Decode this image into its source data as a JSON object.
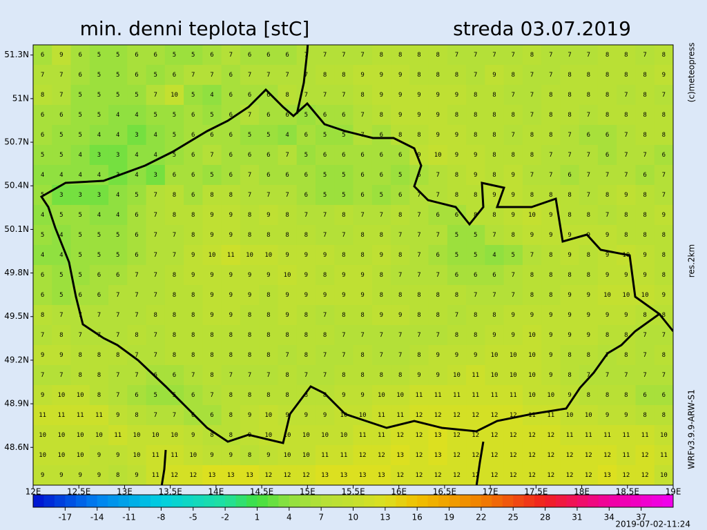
{
  "title": "min. denni teplota [stC]",
  "date": "streda 03.07.2019",
  "copyright": "(c)meteopress",
  "resolution": "res.2km",
  "model": "WRFv3.9.9-ARW-S1",
  "timestamp": "2019-07-02-11:24",
  "map": {
    "xlim": [
      12,
      19
    ],
    "ylim": [
      48.34,
      51.37
    ],
    "xticks": [
      {
        "value": 12,
        "label": "12E"
      },
      {
        "value": 12.5,
        "label": "12.5E"
      },
      {
        "value": 13,
        "label": "13E"
      },
      {
        "value": 13.5,
        "label": "13.5E"
      },
      {
        "value": 14,
        "label": "14E"
      },
      {
        "value": 14.5,
        "label": "14.5E"
      },
      {
        "value": 15,
        "label": "15E"
      },
      {
        "value": 15.5,
        "label": "15.5E"
      },
      {
        "value": 16,
        "label": "16E"
      },
      {
        "value": 16.5,
        "label": "16.5E"
      },
      {
        "value": 17,
        "label": "17E"
      },
      {
        "value": 17.5,
        "label": "17.5E"
      },
      {
        "value": 18,
        "label": "18E"
      },
      {
        "value": 18.5,
        "label": "18.5E"
      },
      {
        "value": 19,
        "label": "19E"
      }
    ],
    "yticks": [
      {
        "value": 51.3,
        "label": "51.3N"
      },
      {
        "value": 51,
        "label": "51N"
      },
      {
        "value": 50.7,
        "label": "50.7N"
      },
      {
        "value": 50.4,
        "label": "50.4N"
      },
      {
        "value": 50.1,
        "label": "50.1N"
      },
      {
        "value": 49.8,
        "label": "49.8N"
      },
      {
        "value": 49.5,
        "label": "49.5N"
      },
      {
        "value": 49.2,
        "label": "49.2N"
      },
      {
        "value": 48.9,
        "label": "48.9N"
      },
      {
        "value": 48.6,
        "label": "48.6N"
      }
    ],
    "values": [
      [
        6,
        9,
        6,
        5,
        5,
        6,
        6,
        5,
        5,
        6,
        7,
        6,
        6,
        6,
        7,
        7,
        7,
        7,
        8,
        8,
        8,
        8,
        7,
        7,
        7,
        7,
        8,
        7,
        7,
        7,
        8,
        8,
        7,
        8
      ],
      [
        7,
        7,
        6,
        5,
        5,
        6,
        5,
        6,
        7,
        7,
        6,
        7,
        7,
        7,
        7,
        8,
        8,
        9,
        9,
        9,
        8,
        8,
        8,
        7,
        9,
        8,
        7,
        7,
        8,
        8,
        8,
        8,
        8,
        9
      ],
      [
        8,
        7,
        5,
        5,
        5,
        5,
        7,
        10,
        5,
        4,
        6,
        6,
        6,
        8,
        7,
        7,
        7,
        8,
        9,
        9,
        9,
        9,
        9,
        8,
        8,
        7,
        7,
        8,
        8,
        8,
        8,
        7,
        8,
        7
      ],
      [
        6,
        6,
        5,
        5,
        4,
        4,
        5,
        5,
        6,
        5,
        6,
        7,
        6,
        6,
        5,
        6,
        6,
        7,
        8,
        9,
        9,
        9,
        8,
        8,
        8,
        8,
        7,
        8,
        8,
        7,
        8,
        8,
        8,
        8
      ],
      [
        6,
        5,
        5,
        4,
        4,
        3,
        4,
        5,
        6,
        6,
        6,
        5,
        5,
        4,
        6,
        5,
        5,
        7,
        6,
        8,
        8,
        9,
        9,
        8,
        8,
        7,
        8,
        8,
        7,
        6,
        6,
        7,
        8,
        8
      ],
      [
        5,
        5,
        4,
        3,
        3,
        4,
        4,
        5,
        6,
        7,
        6,
        6,
        6,
        7,
        5,
        6,
        6,
        6,
        6,
        6,
        9,
        10,
        9,
        9,
        8,
        8,
        8,
        7,
        7,
        7,
        6,
        7,
        7,
        6
      ],
      [
        4,
        4,
        4,
        4,
        3,
        4,
        3,
        6,
        6,
        5,
        6,
        7,
        6,
        6,
        6,
        5,
        5,
        6,
        6,
        5,
        6,
        7,
        8,
        9,
        8,
        9,
        7,
        7,
        6,
        7,
        7,
        7,
        6,
        7
      ],
      [
        5,
        3,
        3,
        3,
        4,
        5,
        7,
        8,
        6,
        8,
        8,
        7,
        7,
        7,
        6,
        5,
        5,
        6,
        5,
        6,
        7,
        7,
        8,
        8,
        9,
        9,
        8,
        8,
        8,
        7,
        8,
        9,
        8,
        7
      ],
      [
        4,
        5,
        5,
        4,
        4,
        6,
        7,
        8,
        8,
        9,
        9,
        8,
        9,
        8,
        7,
        7,
        8,
        7,
        7,
        8,
        7,
        6,
        6,
        8,
        8,
        9,
        10,
        9,
        8,
        8,
        7,
        8,
        8,
        9
      ],
      [
        5,
        4,
        5,
        5,
        5,
        6,
        7,
        7,
        8,
        9,
        9,
        8,
        8,
        8,
        8,
        7,
        7,
        8,
        8,
        7,
        7,
        7,
        5,
        5,
        7,
        8,
        9,
        9,
        9,
        9,
        9,
        8,
        8,
        8
      ],
      [
        4,
        4,
        5,
        5,
        5,
        6,
        7,
        7,
        9,
        10,
        11,
        10,
        10,
        9,
        9,
        9,
        8,
        8,
        9,
        8,
        7,
        6,
        5,
        5,
        4,
        5,
        7,
        8,
        9,
        8,
        9,
        10,
        9,
        8
      ],
      [
        6,
        5,
        5,
        6,
        6,
        7,
        7,
        8,
        9,
        9,
        9,
        9,
        9,
        10,
        9,
        8,
        9,
        9,
        8,
        7,
        7,
        7,
        6,
        6,
        6,
        7,
        8,
        8,
        8,
        8,
        9,
        9,
        9,
        8
      ],
      [
        6,
        5,
        6,
        6,
        7,
        7,
        7,
        8,
        8,
        9,
        9,
        9,
        8,
        9,
        9,
        9,
        9,
        9,
        8,
        8,
        8,
        8,
        8,
        7,
        7,
        7,
        8,
        8,
        9,
        9,
        10,
        10,
        10,
        9
      ],
      [
        8,
        7,
        7,
        7,
        7,
        7,
        8,
        8,
        8,
        9,
        9,
        8,
        8,
        9,
        8,
        7,
        8,
        8,
        9,
        9,
        8,
        8,
        7,
        8,
        8,
        9,
        9,
        9,
        9,
        9,
        9,
        9,
        8,
        8
      ],
      [
        7,
        8,
        7,
        7,
        7,
        8,
        7,
        8,
        8,
        8,
        8,
        8,
        8,
        8,
        8,
        8,
        7,
        7,
        7,
        7,
        7,
        7,
        8,
        8,
        9,
        9,
        10,
        9,
        9,
        9,
        8,
        8,
        7,
        7
      ],
      [
        9,
        9,
        8,
        8,
        8,
        7,
        7,
        8,
        8,
        8,
        8,
        8,
        8,
        7,
        8,
        7,
        7,
        8,
        7,
        7,
        8,
        9,
        9,
        9,
        10,
        10,
        10,
        9,
        8,
        8,
        7,
        8,
        7,
        8
      ],
      [
        7,
        7,
        8,
        8,
        7,
        7,
        6,
        6,
        7,
        8,
        7,
        7,
        7,
        8,
        7,
        7,
        8,
        8,
        8,
        8,
        9,
        9,
        10,
        11,
        10,
        10,
        10,
        9,
        8,
        7,
        7,
        7,
        7,
        7
      ],
      [
        9,
        10,
        10,
        8,
        7,
        6,
        5,
        5,
        6,
        7,
        8,
        8,
        8,
        8,
        8,
        8,
        9,
        9,
        10,
        10,
        11,
        11,
        11,
        11,
        11,
        11,
        10,
        10,
        9,
        8,
        8,
        8,
        6,
        6
      ],
      [
        11,
        11,
        11,
        11,
        9,
        8,
        7,
        7,
        6,
        6,
        8,
        9,
        10,
        9,
        9,
        9,
        10,
        10,
        11,
        11,
        12,
        12,
        12,
        12,
        12,
        12,
        11,
        11,
        10,
        10,
        9,
        9,
        8,
        8
      ],
      [
        10,
        10,
        10,
        10,
        11,
        10,
        10,
        10,
        9,
        8,
        8,
        9,
        10,
        10,
        10,
        10,
        10,
        11,
        11,
        12,
        12,
        13,
        12,
        12,
        12,
        12,
        12,
        12,
        11,
        11,
        11,
        11,
        11,
        10
      ],
      [
        10,
        10,
        10,
        9,
        9,
        10,
        11,
        11,
        10,
        9,
        9,
        8,
        9,
        10,
        10,
        11,
        11,
        12,
        12,
        13,
        12,
        13,
        12,
        12,
        12,
        12,
        12,
        12,
        12,
        12,
        12,
        11,
        12,
        11
      ],
      [
        9,
        9,
        9,
        9,
        8,
        9,
        11,
        12,
        12,
        13,
        13,
        13,
        12,
        12,
        12,
        13,
        13,
        13,
        13,
        12,
        12,
        12,
        12,
        12,
        12,
        12,
        12,
        12,
        12,
        12,
        13,
        12,
        12,
        10
      ]
    ]
  },
  "colorbar": {
    "lim": [
      -20,
      40
    ],
    "ticks": [
      -17,
      -14,
      -11,
      -8,
      -5,
      -2,
      1,
      4,
      7,
      10,
      13,
      16,
      19,
      22,
      25,
      28,
      31,
      34,
      37
    ],
    "colors": [
      {
        "value": -20,
        "color": "#0010d0"
      },
      {
        "value": -14,
        "color": "#0080f0"
      },
      {
        "value": -8,
        "color": "#00d0e0"
      },
      {
        "value": -2,
        "color": "#20e0a0"
      },
      {
        "value": 1,
        "color": "#40e040"
      },
      {
        "value": 4,
        "color": "#90e040"
      },
      {
        "value": 7,
        "color": "#b4e038"
      },
      {
        "value": 10,
        "color": "#c4e030"
      },
      {
        "value": 13,
        "color": "#dce020"
      },
      {
        "value": 16,
        "color": "#f0c000"
      },
      {
        "value": 22,
        "color": "#f08000"
      },
      {
        "value": 28,
        "color": "#f02020"
      },
      {
        "value": 34,
        "color": "#f000a0"
      },
      {
        "value": 40,
        "color": "#f000f0"
      }
    ]
  }
}
